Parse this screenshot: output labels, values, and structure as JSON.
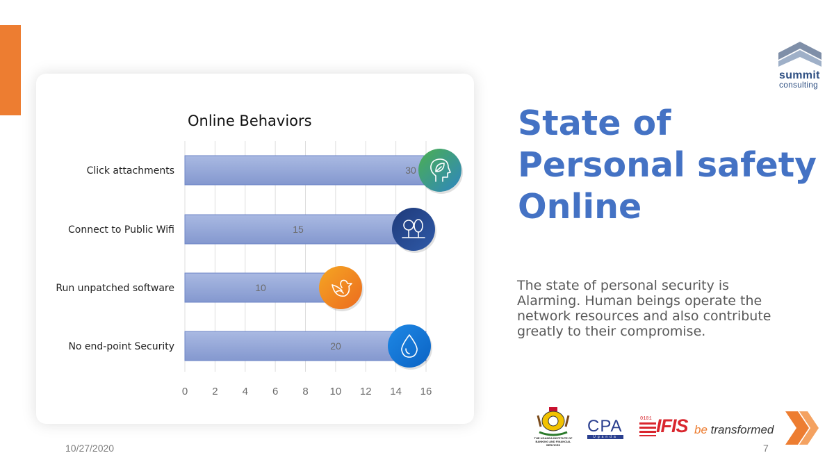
{
  "slide": {
    "title_lines": [
      "State of",
      "Personal safety",
      "Online"
    ],
    "body": "The state of personal security is Alarming. Human beings operate the network resources and also contribute greatly to their compromise.",
    "date": "10/27/2020",
    "page_number": "7",
    "accent_color": "#ED7D31",
    "title_color": "#4472C4"
  },
  "logos": {
    "summit": {
      "line1": "summit",
      "line2": "consulting"
    },
    "uibfs": {
      "text": "THE UGANDA INSTITUTE OF BANKING AND FINANCIAL SERVICES"
    },
    "cpa": {
      "text": "CPA",
      "sub": "Uganda"
    },
    "ifis": {
      "text": "IFIS",
      "binary": "0101",
      "tagline_be": "be",
      "tagline_rest": "transformed"
    }
  },
  "chart_data": {
    "type": "bar",
    "orientation": "horizontal",
    "title": "Online Behaviors",
    "categories": [
      "Click attachments",
      "Connect to Public Wifi",
      "Run unpatched software",
      "No end-point Security"
    ],
    "values": [
      30,
      15,
      10,
      20
    ],
    "bar_lengths": [
      16,
      14.5,
      9.5,
      16
    ],
    "data_labels": [
      "30",
      "15",
      "10",
      "20"
    ],
    "xlim": [
      0,
      16
    ],
    "xticks": [
      0,
      2,
      4,
      6,
      8,
      10,
      12,
      14,
      16
    ],
    "grid": true,
    "bar_color": "#8FA3D6",
    "icons": [
      {
        "name": "head-leaf-icon",
        "colors": [
          "#4CAF50",
          "#2E86C1"
        ]
      },
      {
        "name": "trees-icon",
        "colors": [
          "#1F3A7A",
          "#2F5AA8"
        ]
      },
      {
        "name": "dove-icon",
        "colors": [
          "#F5A623",
          "#EC6B1F"
        ]
      },
      {
        "name": "water-drop-icon",
        "colors": [
          "#1E88E5",
          "#0B63C4"
        ]
      }
    ]
  }
}
